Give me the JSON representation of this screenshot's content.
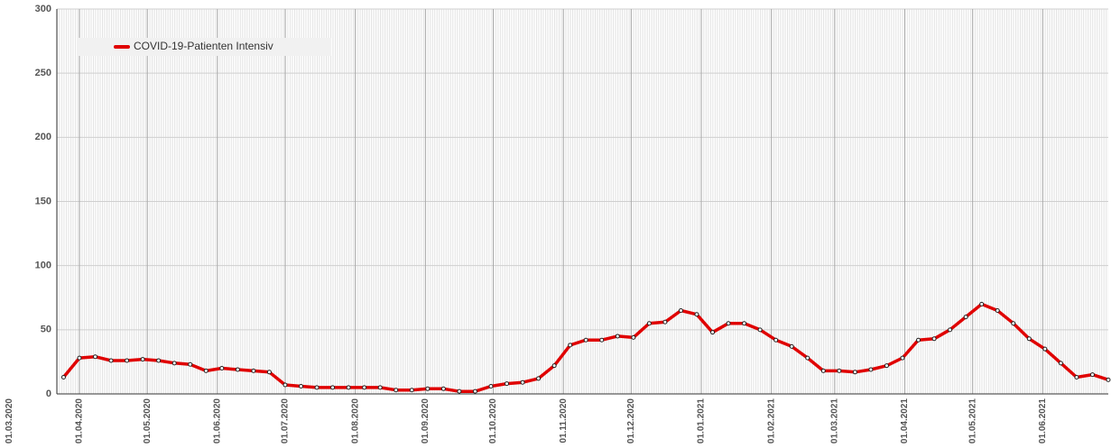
{
  "chart_data": {
    "type": "line",
    "x": [
      "2020-03-25",
      "2020-04-01",
      "2020-04-08",
      "2020-04-15",
      "2020-04-22",
      "2020-04-29",
      "2020-05-06",
      "2020-05-13",
      "2020-05-20",
      "2020-05-27",
      "2020-06-03",
      "2020-06-10",
      "2020-06-17",
      "2020-06-24",
      "2020-07-01",
      "2020-07-08",
      "2020-07-15",
      "2020-07-22",
      "2020-07-29",
      "2020-08-05",
      "2020-08-12",
      "2020-08-19",
      "2020-08-26",
      "2020-09-02",
      "2020-09-09",
      "2020-09-16",
      "2020-09-23",
      "2020-09-30",
      "2020-10-07",
      "2020-10-14",
      "2020-10-21",
      "2020-10-28",
      "2020-11-04",
      "2020-11-11",
      "2020-11-18",
      "2020-11-25",
      "2020-12-02",
      "2020-12-09",
      "2020-12-16",
      "2020-12-23",
      "2020-12-30",
      "2021-01-06",
      "2021-01-13",
      "2021-01-20",
      "2021-01-27",
      "2021-02-03",
      "2021-02-10",
      "2021-02-17",
      "2021-02-24",
      "2021-03-03",
      "2021-03-10",
      "2021-03-17",
      "2021-03-24",
      "2021-03-31",
      "2021-04-07",
      "2021-04-14",
      "2021-04-21",
      "2021-04-28",
      "2021-05-05",
      "2021-05-12",
      "2021-05-19",
      "2021-05-26",
      "2021-06-02",
      "2021-06-09",
      "2021-06-16",
      "2021-06-23",
      "2021-06-30"
    ],
    "series": [
      {
        "name": "COVID-19-Patienten Intensiv",
        "color": "#e00000",
        "values": [
          13,
          28,
          29,
          26,
          26,
          27,
          26,
          24,
          23,
          18,
          20,
          19,
          18,
          17,
          7,
          6,
          5,
          5,
          5,
          5,
          5,
          3,
          3,
          4,
          4,
          2,
          2,
          6,
          8,
          9,
          12,
          22,
          38,
          42,
          42,
          45,
          44,
          55,
          56,
          65,
          62,
          48,
          55,
          55,
          50,
          42,
          37,
          28,
          18,
          18,
          17,
          19,
          22,
          28,
          42,
          43,
          50,
          60,
          70,
          65,
          55,
          43,
          35,
          24,
          13,
          15,
          11
        ]
      }
    ],
    "xlim": [
      "2020-03-01",
      "2021-06-30"
    ],
    "xticks": [
      {
        "value": "2020-03-01",
        "label": "01.03.2020"
      },
      {
        "value": "2020-04-01",
        "label": "01.04.2020"
      },
      {
        "value": "2020-05-01",
        "label": "01.05.2020"
      },
      {
        "value": "2020-06-01",
        "label": "01.06.2020"
      },
      {
        "value": "2020-07-01",
        "label": "01.07.2020"
      },
      {
        "value": "2020-08-01",
        "label": "01.08.2020"
      },
      {
        "value": "2020-09-01",
        "label": "01.09.2020"
      },
      {
        "value": "2020-10-01",
        "label": "01.10.2020"
      },
      {
        "value": "2020-11-01",
        "label": "01.11.2020"
      },
      {
        "value": "2020-12-01",
        "label": "01.12.2020"
      },
      {
        "value": "2021-01-01",
        "label": "01.01.2021"
      },
      {
        "value": "2021-02-01",
        "label": "01.02.2021"
      },
      {
        "value": "2021-03-01",
        "label": "01.03.2021"
      },
      {
        "value": "2021-04-01",
        "label": "01.04.2021"
      },
      {
        "value": "2021-05-01",
        "label": "01.05.2021"
      },
      {
        "value": "2021-06-01",
        "label": "01.06.2021"
      }
    ],
    "ylim": [
      0,
      300
    ],
    "yticks": [
      0,
      50,
      100,
      150,
      200,
      250,
      300
    ],
    "grid": true,
    "legend": "top-left"
  }
}
